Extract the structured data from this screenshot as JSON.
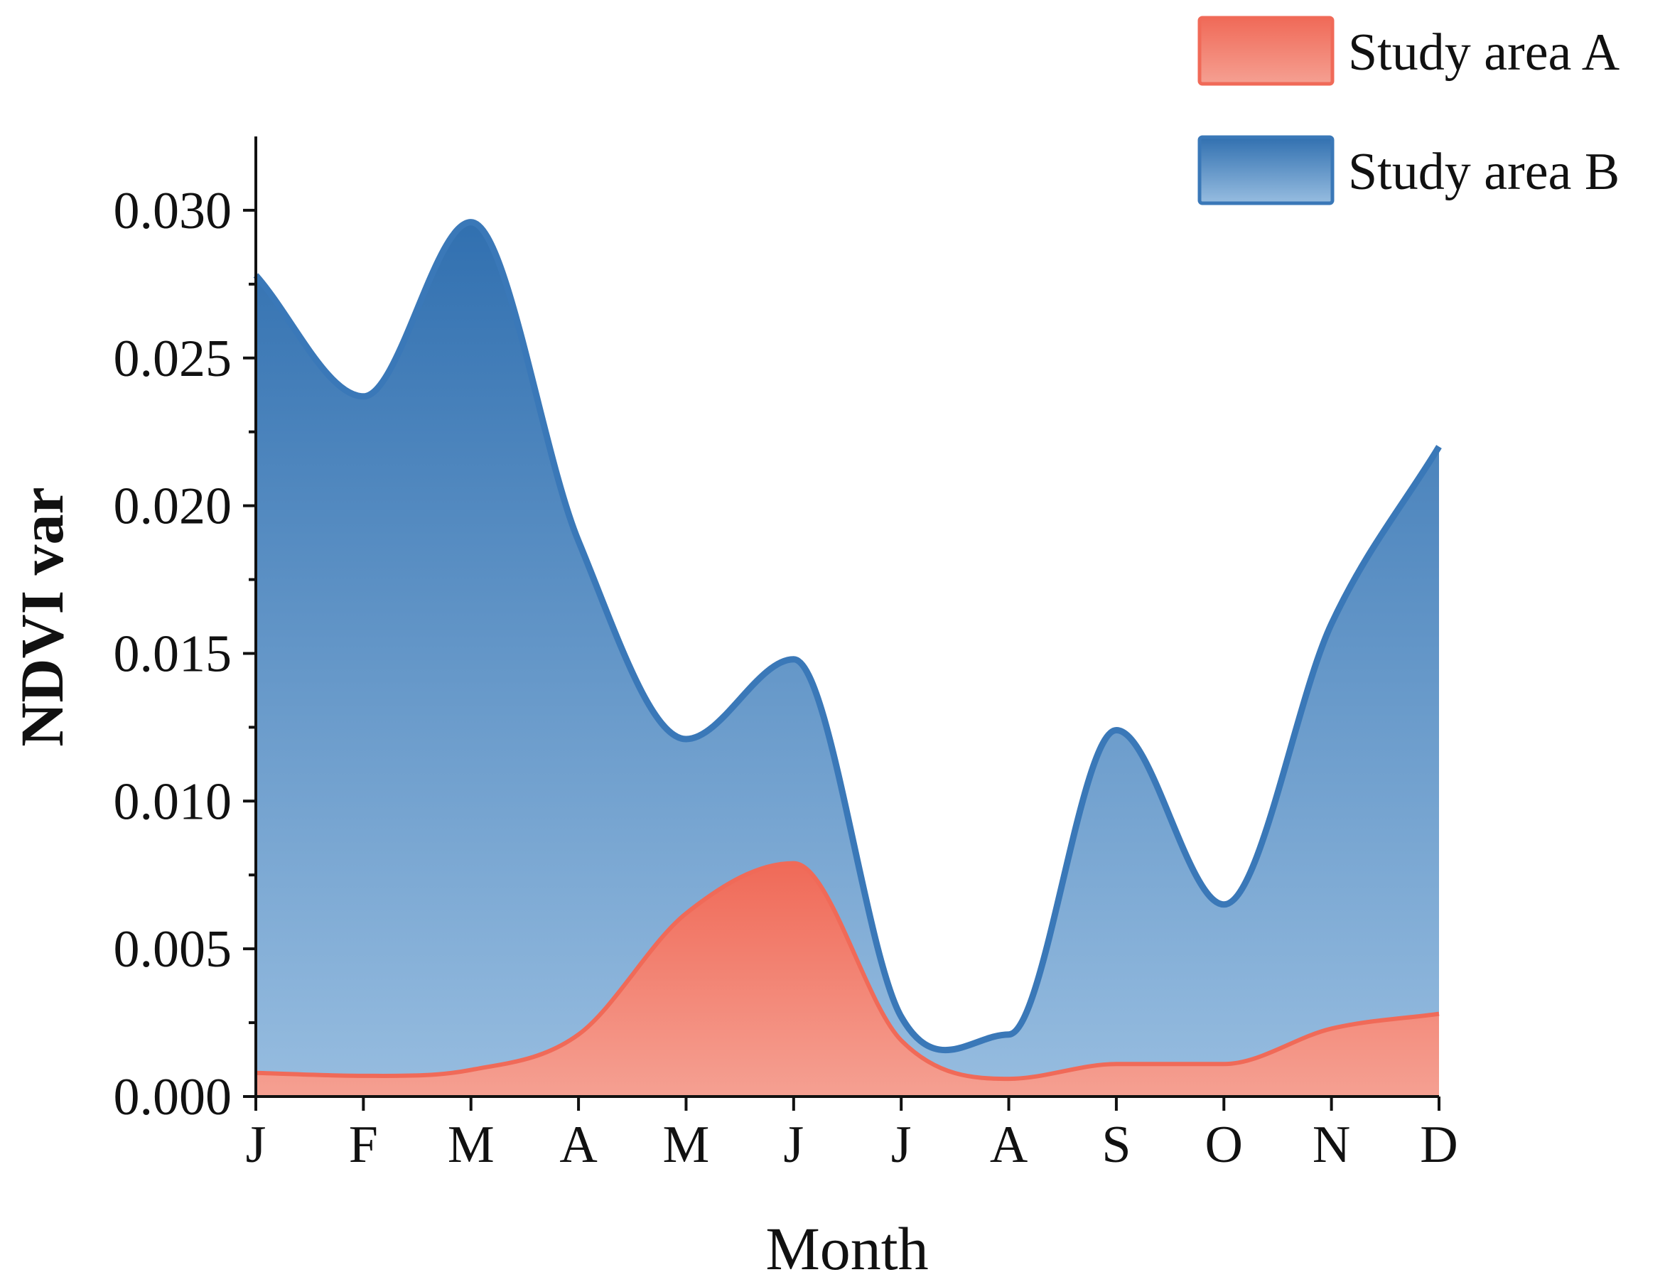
{
  "chart_data": {
    "type": "area",
    "title": "",
    "xlabel": "Month",
    "ylabel": "NDVI var",
    "categories": [
      "J",
      "F",
      "M",
      "A",
      "M",
      "J",
      "J",
      "A",
      "S",
      "O",
      "N",
      "D"
    ],
    "ylim": [
      0,
      0.0325
    ],
    "yticks": [
      "0.000",
      "0.005",
      "0.010",
      "0.015",
      "0.020",
      "0.025",
      "0.030"
    ],
    "legend_position": "top-right",
    "grid": false,
    "series": [
      {
        "name": "Study area A",
        "color": "#f06a58",
        "fill_top": "#f06a58",
        "fill_bottom": "#f5a092",
        "values": [
          0.0008,
          0.0007,
          0.0009,
          0.0021,
          0.0062,
          0.0079,
          0.0019,
          0.0006,
          0.0011,
          0.0011,
          0.0023,
          0.0028
        ]
      },
      {
        "name": "Study area B",
        "color": "#3a78b8",
        "fill_top": "#3170b0",
        "fill_bottom": "#97bde0",
        "values": [
          0.0278,
          0.0237,
          0.0296,
          0.0188,
          0.0121,
          0.0148,
          0.0027,
          0.0021,
          0.0124,
          0.0065,
          0.016,
          0.022
        ]
      }
    ]
  }
}
